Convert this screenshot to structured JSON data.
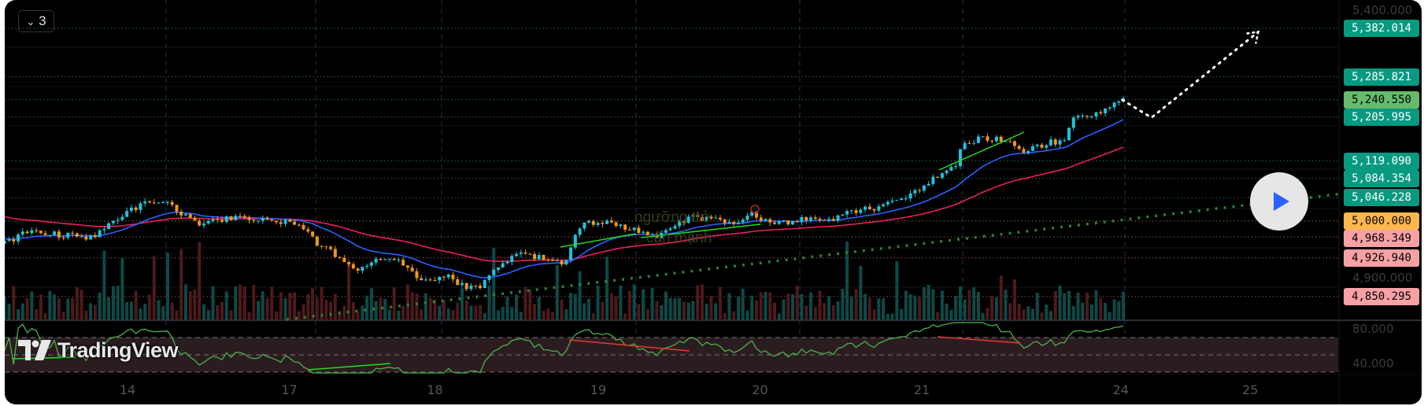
{
  "toolbar": {
    "collapse_icon": "chevron-down-icon",
    "indicator_count": "3"
  },
  "watermark": {
    "line1": "ngưỡng trở",
    "line2": "cản mạnh"
  },
  "brand": {
    "logo_text": "TradingView"
  },
  "colors": {
    "up": "#22c1dc",
    "down": "#f0961e",
    "ma_fast": "#2962ff",
    "ma_slow": "#e91e63",
    "rsi": "#4caf50",
    "label_green": "#089981",
    "label_light_green": "#66bb6a",
    "label_orange": "#ffb74d",
    "label_pink": "#f7a1a5",
    "play": "#2962ff"
  },
  "price_labels": [
    {
      "text": "5,382.014",
      "value": 5382.014,
      "bg": "#089981",
      "fg": "#ffffff"
    },
    {
      "text": "5,285.821",
      "value": 5285.821,
      "bg": "#089981",
      "fg": "#ffffff"
    },
    {
      "text": "5,240.550",
      "value": 5240.55,
      "bg": "#66bb6a",
      "fg": "#000000"
    },
    {
      "text": "5,205.995",
      "value": 5205.995,
      "bg": "#089981",
      "fg": "#ffffff"
    },
    {
      "text": "5,119.090",
      "value": 5119.09,
      "bg": "#089981",
      "fg": "#ffffff"
    },
    {
      "text": "5,084.354",
      "value": 5084.354,
      "bg": "#089981",
      "fg": "#ffffff"
    },
    {
      "text": "5,046.228",
      "value": 5046.228,
      "bg": "#089981",
      "fg": "#ffffff"
    },
    {
      "text": "5,000.000",
      "value": 5000.0,
      "bg": "#ffb74d",
      "fg": "#000000"
    },
    {
      "text": "4,968.349",
      "value": 4968.349,
      "bg": "#f7a1a5",
      "fg": "#000000"
    },
    {
      "text": "4,926.940",
      "value": 4926.94,
      "bg": "#f7a1a5",
      "fg": "#000000"
    },
    {
      "text": "4,850.295",
      "value": 4850.295,
      "bg": "#f7a1a5",
      "fg": "#000000"
    }
  ],
  "price_axis_ticks": [
    {
      "text": "5,400.000",
      "value": 5400
    },
    {
      "text": "4,900.000",
      "value": 4900
    }
  ],
  "rsi_axis_ticks": [
    {
      "text": "80.000",
      "value": 80
    },
    {
      "text": "40.000",
      "value": 40
    }
  ],
  "chart_data": {
    "type": "line",
    "title": "",
    "xlabel": "",
    "ylabel": "",
    "ylim": [
      4850,
      5382
    ],
    "x_ticks": [
      {
        "label": "14",
        "t": 0
      },
      {
        "label": "17",
        "t": 1
      },
      {
        "label": "18",
        "t": 1.9
      },
      {
        "label": "19",
        "t": 2.91
      },
      {
        "label": "20",
        "t": 3.91
      },
      {
        "label": "21",
        "t": 4.91
      },
      {
        "label": "24",
        "t": 6.14
      },
      {
        "label": "25",
        "t": 6.94
      }
    ],
    "price_path": [
      [
        -0.76,
        4955
      ],
      [
        -0.62,
        4979
      ],
      [
        -0.45,
        4974
      ],
      [
        -0.22,
        4967
      ],
      [
        -0.06,
        5006
      ],
      [
        0.08,
        5033
      ],
      [
        0.21,
        5042
      ],
      [
        0.34,
        5015
      ],
      [
        0.45,
        4992
      ],
      [
        0.67,
        5010
      ],
      [
        0.9,
        4997
      ],
      [
        1.07,
        4997
      ],
      [
        1.18,
        4952
      ],
      [
        1.38,
        4917
      ],
      [
        1.4,
        4899
      ],
      [
        1.57,
        4926
      ],
      [
        1.69,
        4917
      ],
      [
        1.74,
        4899
      ],
      [
        1.85,
        4881
      ],
      [
        1.97,
        4890
      ],
      [
        2.08,
        4872
      ],
      [
        2.16,
        4866
      ],
      [
        2.28,
        4908
      ],
      [
        2.42,
        4935
      ],
      [
        2.58,
        4926
      ],
      [
        2.7,
        4917
      ],
      [
        2.81,
        4997
      ],
      [
        2.98,
        4997
      ],
      [
        3.15,
        4979
      ],
      [
        3.26,
        4967
      ],
      [
        3.48,
        5006
      ],
      [
        3.65,
        5006
      ],
      [
        3.76,
        4988
      ],
      [
        3.85,
        5015
      ],
      [
        3.99,
        4992
      ],
      [
        4.16,
        5003
      ],
      [
        4.33,
        5001
      ],
      [
        4.49,
        5021
      ],
      [
        4.66,
        5028
      ],
      [
        4.83,
        5051
      ],
      [
        5.0,
        5087
      ],
      [
        5.11,
        5105
      ],
      [
        5.16,
        5150
      ],
      [
        5.28,
        5165
      ],
      [
        5.45,
        5159
      ],
      [
        5.53,
        5132
      ],
      [
        5.67,
        5154
      ],
      [
        5.79,
        5159
      ],
      [
        5.84,
        5204
      ],
      [
        5.96,
        5213
      ],
      [
        6.07,
        5222
      ],
      [
        6.15,
        5240
      ]
    ],
    "ma_fast_period": 20,
    "ma_slow_period": 55,
    "rsi_band": [
      30,
      70
    ],
    "projection": [
      [
        6.15,
        5240
      ],
      [
        6.33,
        5205
      ],
      [
        6.99,
        5375
      ]
    ]
  }
}
